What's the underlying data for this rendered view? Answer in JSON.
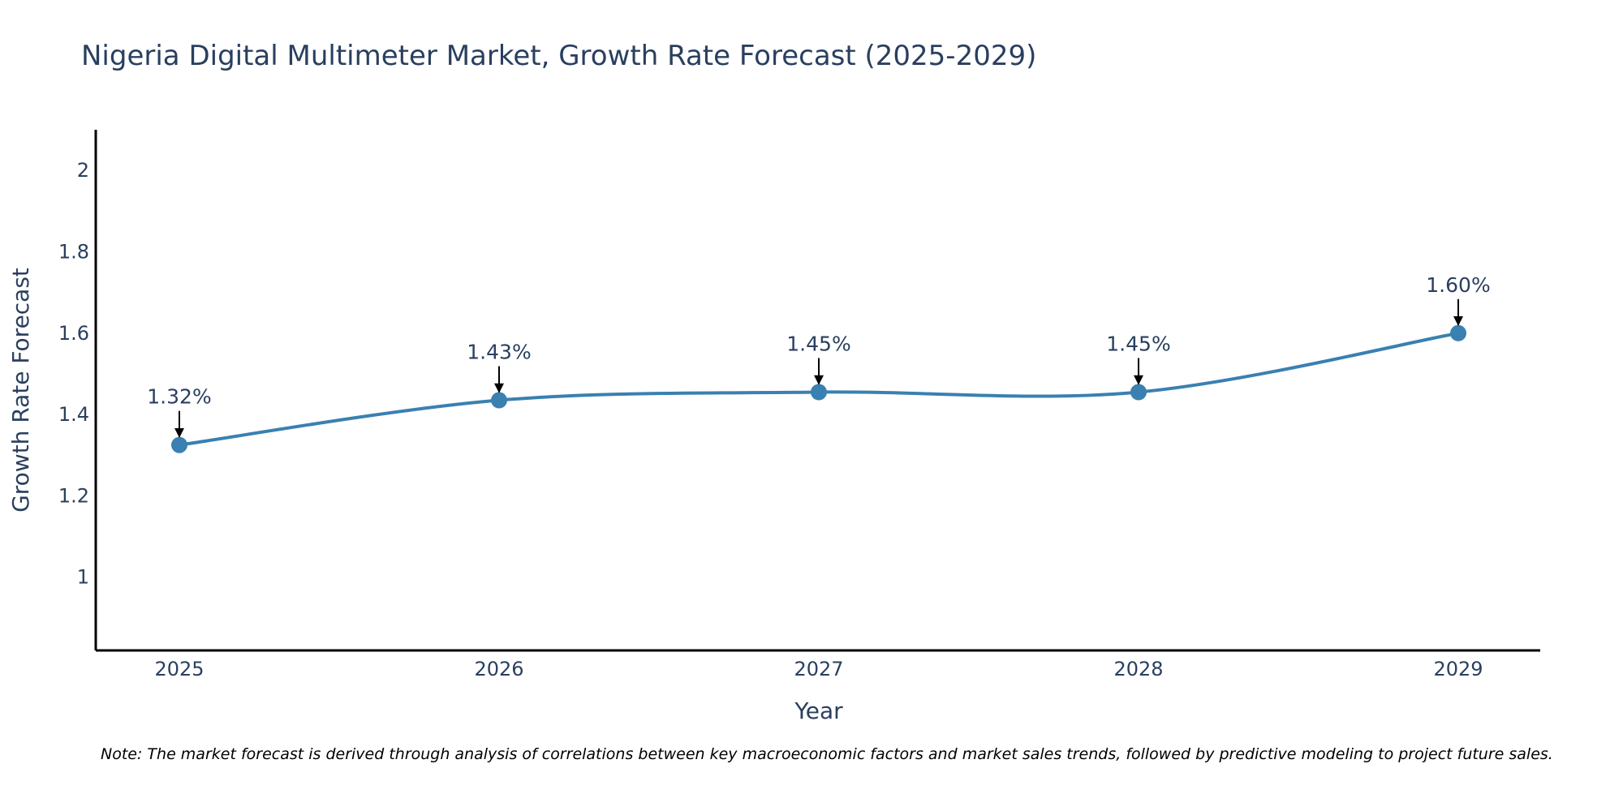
{
  "chart_data": {
    "type": "line",
    "title": "Nigeria Digital Multimeter Market, Growth Rate Forecast (2025-2029)",
    "xlabel": "Year",
    "ylabel": "Growth Rate Forecast",
    "categories": [
      "2025",
      "2026",
      "2027",
      "2028",
      "2029"
    ],
    "values": [
      1.325,
      1.435,
      1.455,
      1.455,
      1.6
    ],
    "data_labels": [
      "1.32%",
      "1.43%",
      "1.45%",
      "1.45%",
      "1.60%"
    ],
    "yticks": [
      1,
      1.2,
      1.4,
      1.6,
      1.8,
      2
    ],
    "ytick_labels": [
      "1",
      "1.2",
      "1.4",
      "1.6",
      "1.8",
      "2"
    ],
    "ylim": [
      0.82,
      2.1
    ],
    "line_color": "#3a80b1",
    "marker_color": "#3a80b1",
    "grid": false
  },
  "note": "Note: The market forecast is derived through analysis of correlations between key macroeconomic factors and market sales trends, followed by predictive modeling to project future sales."
}
